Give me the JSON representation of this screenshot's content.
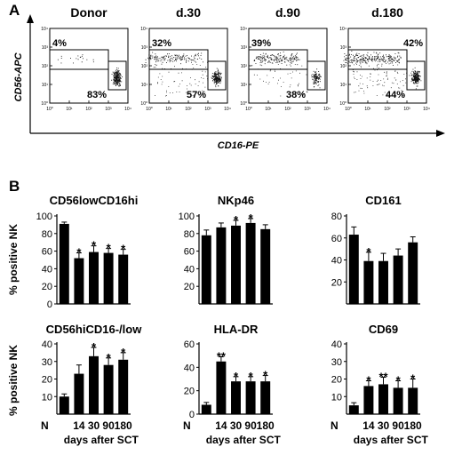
{
  "panel_a": {
    "letter": "A",
    "y_axis_label": "CD56-APC",
    "x_axis_label": "CD16-PE",
    "tick_labels": [
      "10⁰",
      "10¹",
      "10²",
      "10³",
      "10⁴"
    ],
    "plots": [
      {
        "title": "Donor",
        "upper_gate": "4%",
        "lower_gate": "83%"
      },
      {
        "title": "d.30",
        "upper_gate": "32%",
        "lower_gate": "57%"
      },
      {
        "title": "d.90",
        "upper_gate": "39%",
        "lower_gate": "38%"
      },
      {
        "title": "d.180",
        "upper_gate": "42%",
        "lower_gate": "44%"
      }
    ]
  },
  "panel_b": {
    "letter": "B",
    "row_ylabel": "% positive NK",
    "x_title": "days after SCT"
  },
  "chart_data": [
    {
      "type": "bar",
      "title": "CD56lowCD16hi",
      "categories": [
        "N",
        "14",
        "30",
        "90",
        "180"
      ],
      "values": [
        91,
        52,
        59,
        58,
        56
      ],
      "errors": [
        2,
        6,
        7,
        5,
        6
      ],
      "significance": [
        "",
        "*",
        "*",
        "*",
        "*"
      ],
      "ylim": [
        0,
        100
      ],
      "yticks": [
        0,
        20,
        40,
        60,
        80,
        100
      ],
      "show_xlabels": false
    },
    {
      "type": "bar",
      "title": "NKp46",
      "categories": [
        "N",
        "14",
        "30",
        "90",
        "180"
      ],
      "values": [
        78,
        87,
        89,
        92,
        85
      ],
      "errors": [
        6,
        5,
        6,
        5,
        5
      ],
      "significance": [
        "",
        "",
        "*",
        "*",
        ""
      ],
      "ylim": [
        0,
        100
      ],
      "yticks": [
        20,
        40,
        60,
        80,
        100
      ],
      "show_xlabels": false
    },
    {
      "type": "bar",
      "title": "CD161",
      "categories": [
        "N",
        "14",
        "30",
        "90",
        "180"
      ],
      "values": [
        63,
        39,
        39,
        44,
        56
      ],
      "errors": [
        7,
        8,
        7,
        6,
        5
      ],
      "significance": [
        "",
        "*",
        "",
        "",
        ""
      ],
      "ylim": [
        0,
        80
      ],
      "yticks": [
        20,
        40,
        60,
        80
      ],
      "show_xlabels": false
    },
    {
      "type": "bar",
      "title": "CD56hiCD16-/low",
      "categories": [
        "N",
        "14",
        "30",
        "90",
        "180"
      ],
      "values": [
        10,
        23,
        33,
        28,
        31
      ],
      "errors": [
        1.5,
        5,
        5,
        4,
        4
      ],
      "significance": [
        "",
        "",
        "*",
        "*",
        "*"
      ],
      "ylim": [
        0,
        40
      ],
      "yticks": [
        10,
        20,
        30,
        40
      ],
      "show_xlabels": true
    },
    {
      "type": "bar",
      "title": "HLA-DR",
      "categories": [
        "N",
        "14",
        "30",
        "90",
        "180"
      ],
      "values": [
        8,
        45,
        28,
        28,
        28
      ],
      "errors": [
        2,
        4,
        4,
        4,
        5
      ],
      "significance": [
        "",
        "**",
        "*",
        "*",
        "*"
      ],
      "ylim": [
        0,
        60
      ],
      "yticks": [
        0,
        20,
        40,
        60
      ],
      "show_xlabels": true
    },
    {
      "type": "bar",
      "title": "CD69",
      "categories": [
        "N",
        "14",
        "30",
        "90",
        "180"
      ],
      "values": [
        5,
        16,
        17,
        15,
        15
      ],
      "errors": [
        1.5,
        3,
        4,
        4,
        5
      ],
      "significance": [
        "",
        "*",
        "**",
        "*",
        "*"
      ],
      "ylim": [
        0,
        40
      ],
      "yticks": [
        10,
        20,
        30,
        40
      ],
      "show_xlabels": true
    }
  ]
}
